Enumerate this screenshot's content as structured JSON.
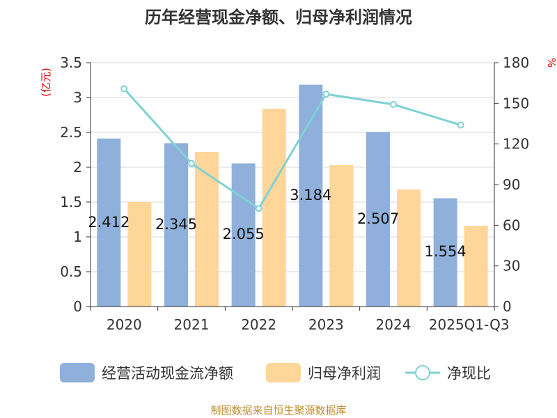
{
  "chart_data": {
    "type": "bar",
    "title": "历年经营现金净额、归母净利润情况",
    "categories": [
      "2020",
      "2021",
      "2022",
      "2023",
      "2024",
      "2025Q1-Q3"
    ],
    "series": [
      {
        "name": "经营活动现金流净额",
        "type": "bar",
        "axis": "left",
        "color": "#8eb0db",
        "values": [
          2.412,
          2.345,
          2.055,
          3.184,
          2.507,
          1.554
        ],
        "labels": [
          "2.412",
          "2.345",
          "2.055",
          "3.184",
          "2.507",
          "1.554"
        ]
      },
      {
        "name": "归母净利润",
        "type": "bar",
        "axis": "left",
        "color": "#fed699",
        "values": [
          1.5,
          2.22,
          2.84,
          2.03,
          1.68,
          1.16
        ]
      },
      {
        "name": "净现比",
        "type": "line",
        "axis": "right",
        "color": "#7fd1d4",
        "values": [
          160.8,
          105.6,
          72.4,
          156.8,
          149.2,
          134.0
        ]
      }
    ],
    "y_left": {
      "unit": "(亿元)",
      "min": 0,
      "max": 3.5,
      "ticks": [
        "0",
        "0.5",
        "1",
        "1.5",
        "2",
        "2.5",
        "3",
        "3.5"
      ]
    },
    "y_right": {
      "unit": "%",
      "min": 0,
      "max": 180,
      "ticks": [
        "0",
        "30",
        "60",
        "90",
        "120",
        "150",
        "180"
      ]
    },
    "grid": true,
    "legend_position": "bottom",
    "source": "制图数据来自恒生聚源数据库"
  }
}
